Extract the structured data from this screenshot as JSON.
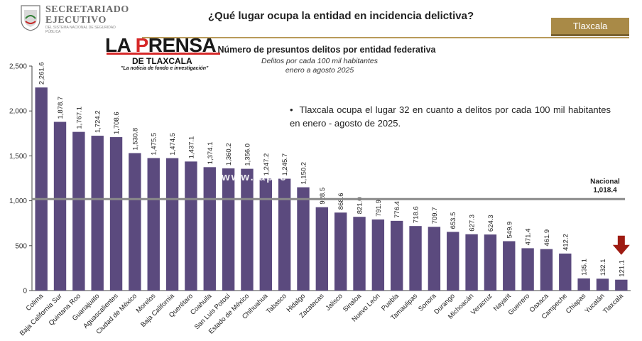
{
  "header": {
    "org_line1": "SECRETARIADO",
    "org_line2": "EJECUTIVO",
    "org_sub": "DEL SISTEMA NACIONAL DE SEGURIDAD PÚBLICA",
    "title": "¿Qué lugar ocupa la entidad en incidencia delictiva?",
    "state_tab": "Tlaxcala",
    "accent_color": "#a98a47"
  },
  "brand": {
    "title_part1": "LA ",
    "title_part2": "P",
    "title_part3": "RENSA",
    "subtitle": "DE TLAXCALA",
    "tagline": "\"La noticia de fondo e investigación\"",
    "watermark": "www.lapre",
    "brand_color": "#d62828"
  },
  "note": {
    "text": "Tlaxcala ocupa el lugar 32 en cuanto a delitos por cada 100 mil habitantes en enero - agosto de 2025."
  },
  "chart_data": {
    "type": "bar",
    "title": "Número de presuntos delitos por entidad federativa",
    "subtitle": "Delitos por cada 100 mil habitantes",
    "period": "enero a agosto 2025",
    "categories": [
      "Colima",
      "Baja California Sur",
      "Quintana Roo",
      "Guanajuato",
      "Aguascalientes",
      "Ciudad de México",
      "Morelos",
      "Baja California",
      "Querétaro",
      "Coahuila",
      "San Luis Potosí",
      "Estado de México",
      "Chihuahua",
      "Tabasco",
      "Hidalgo",
      "Zacatecas",
      "Jalisco",
      "Sinaloa",
      "Nuevo León",
      "Puebla",
      "Tamaulipas",
      "Sonora",
      "Durango",
      "Michoacán",
      "Veracruz",
      "Nayarit",
      "Guerrero",
      "Oaxaca",
      "Campeche",
      "Chiapas",
      "Yucatán",
      "Tlaxcala"
    ],
    "values": [
      2261.6,
      1878.7,
      1767.1,
      1724.2,
      1708.6,
      1530.8,
      1475.5,
      1474.5,
      1437.1,
      1374.1,
      1360.2,
      1356.0,
      1247.2,
      1245.7,
      1150.2,
      928.5,
      868.6,
      821.0,
      791.9,
      776.4,
      718.6,
      709.7,
      653.5,
      627.3,
      624.3,
      549.9,
      471.4,
      461.9,
      412.2,
      135.1,
      132.1,
      121.1
    ],
    "value_labels": [
      "2,261.6",
      "1,878.7",
      "1,767.1",
      "1,724.2",
      "1,708.6",
      "1,530.8",
      "1,475.5",
      "1,474.5",
      "1,437.1",
      "1,374.1",
      "1,360.2",
      "1,356.0",
      "1,247.2",
      "1,245.7",
      "1,150.2",
      "928.5",
      "868.6",
      "821.0",
      "791.9",
      "776.4",
      "718.6",
      "709.7",
      "653.5",
      "627.3",
      "624.3",
      "549.9",
      "471.4",
      "461.9",
      "412.2",
      "135.1",
      "132.1",
      "121.1"
    ],
    "ylim": [
      0,
      2500
    ],
    "yticks": [
      0,
      500,
      1000,
      1500,
      2000,
      2500
    ],
    "ytick_labels": [
      "0",
      "500",
      "1,000",
      "1,500",
      "2,000",
      "2,500"
    ],
    "reference_line": {
      "label": "Nacional",
      "value": 1018.4,
      "value_label": "1,018.4"
    },
    "highlight": "Tlaxcala",
    "bar_color": "#5b4a7e",
    "highlight_marker_color": "#9e1b12",
    "reference_color": "#8a8a8a",
    "grid": false
  }
}
